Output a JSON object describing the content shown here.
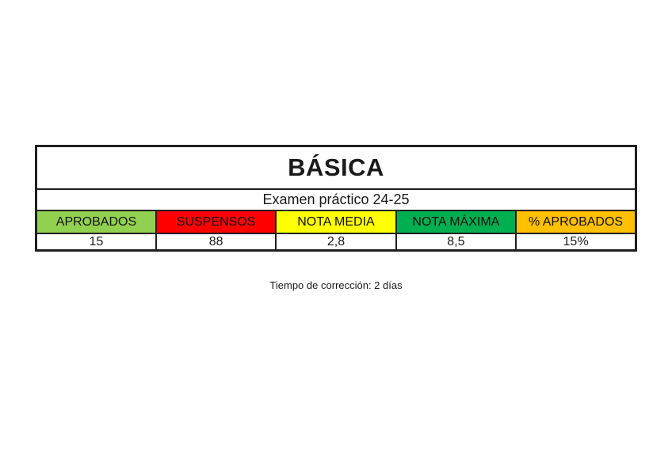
{
  "chart_data": {
    "type": "table",
    "title": "BÁSICA",
    "subtitle": "Examen práctico 24-25",
    "columns": [
      "APROBADOS",
      "SUSPENSOS",
      "NOTA MEDIA",
      "NOTA MÁXIMA",
      "% APROBADOS"
    ],
    "values": [
      "15",
      "88",
      "2,8",
      "8,5",
      "15%"
    ],
    "header_colors": [
      "#92D050",
      "#FF0000",
      "#FFFF00",
      "#00B050",
      "#FFC000"
    ],
    "caption": "Tiempo de corrección: 2 días",
    "layout": {
      "border_color": "#1f1f1f",
      "background": "#ffffff",
      "text_color": "#1a1a1a"
    }
  }
}
